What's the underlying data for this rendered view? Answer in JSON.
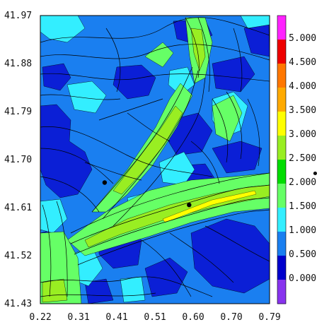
{
  "map": {
    "y_ticks": [
      "41.97",
      "41.88",
      "41.79",
      "41.70",
      "41.61",
      "41.52",
      "41.43"
    ],
    "x_ticks": [
      "0.22",
      "0.31",
      "0.41",
      "0.51",
      "0.60",
      "0.70",
      "0.79"
    ],
    "stations": [
      {
        "x": 0.38,
        "y": 41.657
      },
      {
        "x": 0.59,
        "y": 41.615
      }
    ]
  },
  "colorbar": {
    "labels": [
      "5.000",
      "4.500",
      "4.000",
      "3.500",
      "3.000",
      "2.500",
      "2.000",
      "1.500",
      "1.000",
      "0.500",
      "0.000"
    ],
    "colors": [
      "#ff22ff",
      "#ee0000",
      "#ff7700",
      "#ffaa00",
      "#ffff00",
      "#99ee22",
      "#00dd00",
      "#66ff66",
      "#33eeff",
      "#1a7ff0",
      "#0000cc",
      "#8833ee"
    ],
    "marker_label": "•"
  },
  "palette": {
    "deep_blue": "#0b1fd6",
    "blue": "#1a7ff0",
    "cyan": "#33eeff",
    "light_green": "#66ff66",
    "green": "#22dd22",
    "yellow_green": "#99ee22"
  }
}
